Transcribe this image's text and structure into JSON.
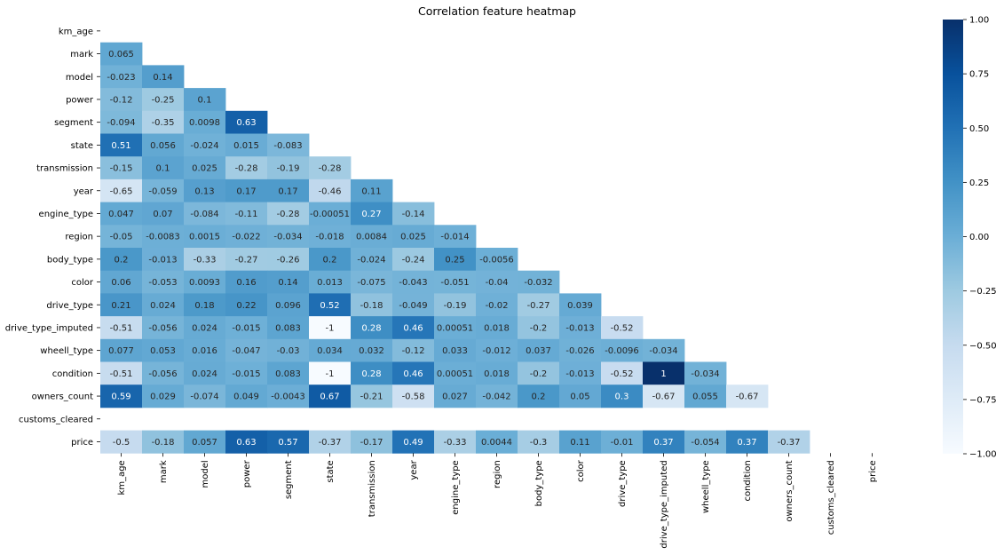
{
  "chart_data": {
    "type": "heatmap",
    "title": "Correlation feature heatmap",
    "labels": [
      "km_age",
      "mark",
      "model",
      "power",
      "segment",
      "state",
      "transmission",
      "year",
      "engine_type",
      "region",
      "body_type",
      "color",
      "drive_type",
      "drive_type_imputed",
      "wheell_type",
      "condition",
      "owners_count",
      "customs_cleared",
      "price"
    ],
    "colormap": "Blues",
    "colorbar": {
      "range": [
        -1.0,
        1.0
      ],
      "ticks": [
        "1.00",
        "0.75",
        "0.50",
        "0.25",
        "0.00",
        "−0.25",
        "−0.50",
        "−0.75",
        "−1.00"
      ]
    },
    "mask": "upper-triangle",
    "rows": [
      {
        "label": "km_age",
        "values": []
      },
      {
        "label": "mark",
        "values": [
          "0.065"
        ]
      },
      {
        "label": "model",
        "values": [
          "-0.023",
          "0.14"
        ]
      },
      {
        "label": "power",
        "values": [
          "-0.12",
          "-0.25",
          "0.1"
        ]
      },
      {
        "label": "segment",
        "values": [
          "-0.094",
          "-0.35",
          "0.0098",
          "0.63"
        ]
      },
      {
        "label": "state",
        "values": [
          "0.51",
          "0.056",
          "-0.024",
          "0.015",
          "-0.083"
        ]
      },
      {
        "label": "transmission",
        "values": [
          "-0.15",
          "0.1",
          "0.025",
          "-0.28",
          "-0.19",
          "-0.28"
        ]
      },
      {
        "label": "year",
        "values": [
          "-0.65",
          "-0.059",
          "0.13",
          "0.17",
          "0.17",
          "-0.46",
          "0.11"
        ]
      },
      {
        "label": "engine_type",
        "values": [
          "0.047",
          "0.07",
          "-0.084",
          "-0.11",
          "-0.28",
          "-0.00051",
          "0.27",
          "-0.14"
        ]
      },
      {
        "label": "region",
        "values": [
          "-0.05",
          "-0.0083",
          "0.0015",
          "-0.022",
          "-0.034",
          "-0.018",
          "0.0084",
          "0.025",
          "-0.014"
        ]
      },
      {
        "label": "body_type",
        "values": [
          "0.2",
          "-0.013",
          "-0.33",
          "-0.27",
          "-0.26",
          "0.2",
          "-0.024",
          "-0.24",
          "0.25",
          "-0.0056"
        ]
      },
      {
        "label": "color",
        "values": [
          "0.06",
          "-0.053",
          "0.0093",
          "0.16",
          "0.14",
          "0.013",
          "-0.075",
          "-0.043",
          "-0.051",
          "-0.04",
          "-0.032"
        ]
      },
      {
        "label": "drive_type",
        "values": [
          "0.21",
          "0.024",
          "0.18",
          "0.22",
          "0.096",
          "0.52",
          "-0.18",
          "-0.049",
          "-0.19",
          "-0.02",
          "-0.27",
          "0.039"
        ]
      },
      {
        "label": "drive_type_imputed",
        "values": [
          "-0.51",
          "-0.056",
          "0.024",
          "-0.015",
          "0.083",
          "-1",
          "0.28",
          "0.46",
          "0.00051",
          "0.018",
          "-0.2",
          "-0.013",
          "-0.52"
        ]
      },
      {
        "label": "wheell_type",
        "values": [
          "0.077",
          "0.053",
          "0.016",
          "-0.047",
          "-0.03",
          "0.034",
          "0.032",
          "-0.12",
          "0.033",
          "-0.012",
          "0.037",
          "-0.026",
          "-0.0096",
          "-0.034"
        ]
      },
      {
        "label": "condition",
        "values": [
          "-0.51",
          "-0.056",
          "0.024",
          "-0.015",
          "0.083",
          "-1",
          "0.28",
          "0.46",
          "0.00051",
          "0.018",
          "-0.2",
          "-0.013",
          "-0.52",
          "1",
          "-0.034"
        ]
      },
      {
        "label": "owners_count",
        "values": [
          "0.59",
          "0.029",
          "-0.074",
          "0.049",
          "-0.0043",
          "0.67",
          "-0.21",
          "-0.58",
          "0.027",
          "-0.042",
          "0.2",
          "0.05",
          "0.3",
          "-0.67",
          "0.055",
          "-0.67"
        ]
      },
      {
        "label": "customs_cleared",
        "values": []
      },
      {
        "label": "price",
        "values": [
          "-0.5",
          "-0.18",
          "0.057",
          "0.63",
          "0.57",
          "-0.37",
          "-0.17",
          "0.49",
          "-0.33",
          "0.0044",
          "-0.3",
          "0.11",
          "-0.01",
          "0.37",
          "-0.054",
          "0.37",
          "-0.37"
        ]
      }
    ]
  }
}
